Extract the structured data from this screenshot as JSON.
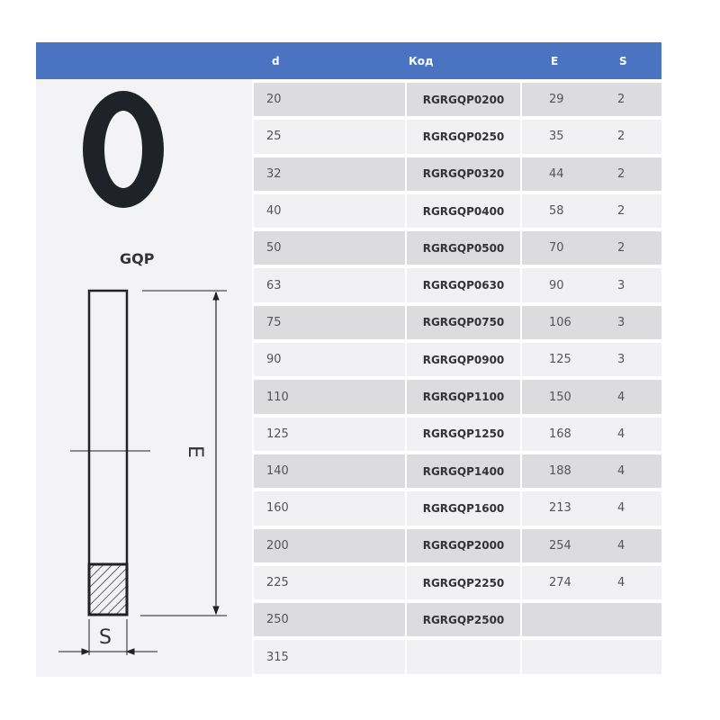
{
  "product_label": "GQP",
  "drawing": {
    "dim_e": "E",
    "dim_s": "S"
  },
  "table": {
    "headers": {
      "d": "d",
      "code": "Код",
      "e": "E",
      "s": "S"
    },
    "rows": [
      {
        "d": "20",
        "code": "RGRGQP0200",
        "e": "29",
        "s": "2"
      },
      {
        "d": "25",
        "code": "RGRGQP0250",
        "e": "35",
        "s": "2"
      },
      {
        "d": "32",
        "code": "RGRGQP0320",
        "e": "44",
        "s": "2"
      },
      {
        "d": "40",
        "code": "RGRGQP0400",
        "e": "58",
        "s": "2"
      },
      {
        "d": "50",
        "code": "RGRGQP0500",
        "e": "70",
        "s": "2"
      },
      {
        "d": "63",
        "code": "RGRGQP0630",
        "e": "90",
        "s": "3"
      },
      {
        "d": "75",
        "code": "RGRGQP0750",
        "e": "106",
        "s": "3"
      },
      {
        "d": "90",
        "code": "RGRGQP0900",
        "e": "125",
        "s": "3"
      },
      {
        "d": "110",
        "code": "RGRGQP1100",
        "e": "150",
        "s": "4"
      },
      {
        "d": "125",
        "code": "RGRGQP1250",
        "e": "168",
        "s": "4"
      },
      {
        "d": "140",
        "code": "RGRGQP1400",
        "e": "188",
        "s": "4"
      },
      {
        "d": "160",
        "code": "RGRGQP1600",
        "e": "213",
        "s": "4"
      },
      {
        "d": "200",
        "code": "RGRGQP2000",
        "e": "254",
        "s": "4"
      },
      {
        "d": "225",
        "code": "RGRGQP2250",
        "e": "274",
        "s": "4"
      },
      {
        "d": "250",
        "code": "RGRGQP2500",
        "e": "",
        "s": ""
      },
      {
        "d": "315",
        "code": "",
        "e": "",
        "s": ""
      }
    ]
  },
  "colors": {
    "header": "#4a73c2",
    "row_dark": "#dcdcde",
    "row_light": "#f1f1f3"
  }
}
